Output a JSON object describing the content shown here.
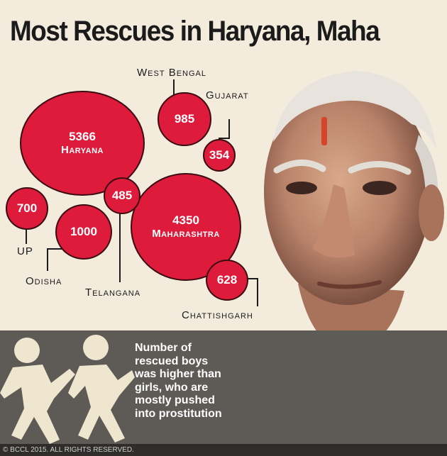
{
  "title": "Most Rescues in Haryana, Maha",
  "states": [
    {
      "name": "Haryana",
      "value": "5366"
    },
    {
      "name": "Maharashtra",
      "value": "4350"
    },
    {
      "name": "West Bengal",
      "value": "985"
    },
    {
      "name": "Gujarat",
      "value": "354"
    },
    {
      "name": "UP",
      "value": "700"
    },
    {
      "name": "Odisha",
      "value": "1000"
    },
    {
      "name": "Telangana",
      "value": "485"
    },
    {
      "name": "Chattishgarh",
      "value": "628"
    }
  ],
  "note": "Number of rescued boys was higher than girls, who are mostly pushed into prostitution",
  "copyright": "© BCCL 2015. ALL RIGHTS RESERVED.",
  "colors": {
    "bubble": "#df1b3c",
    "background": "#f3ebdc",
    "band": "#5e5b57"
  }
}
